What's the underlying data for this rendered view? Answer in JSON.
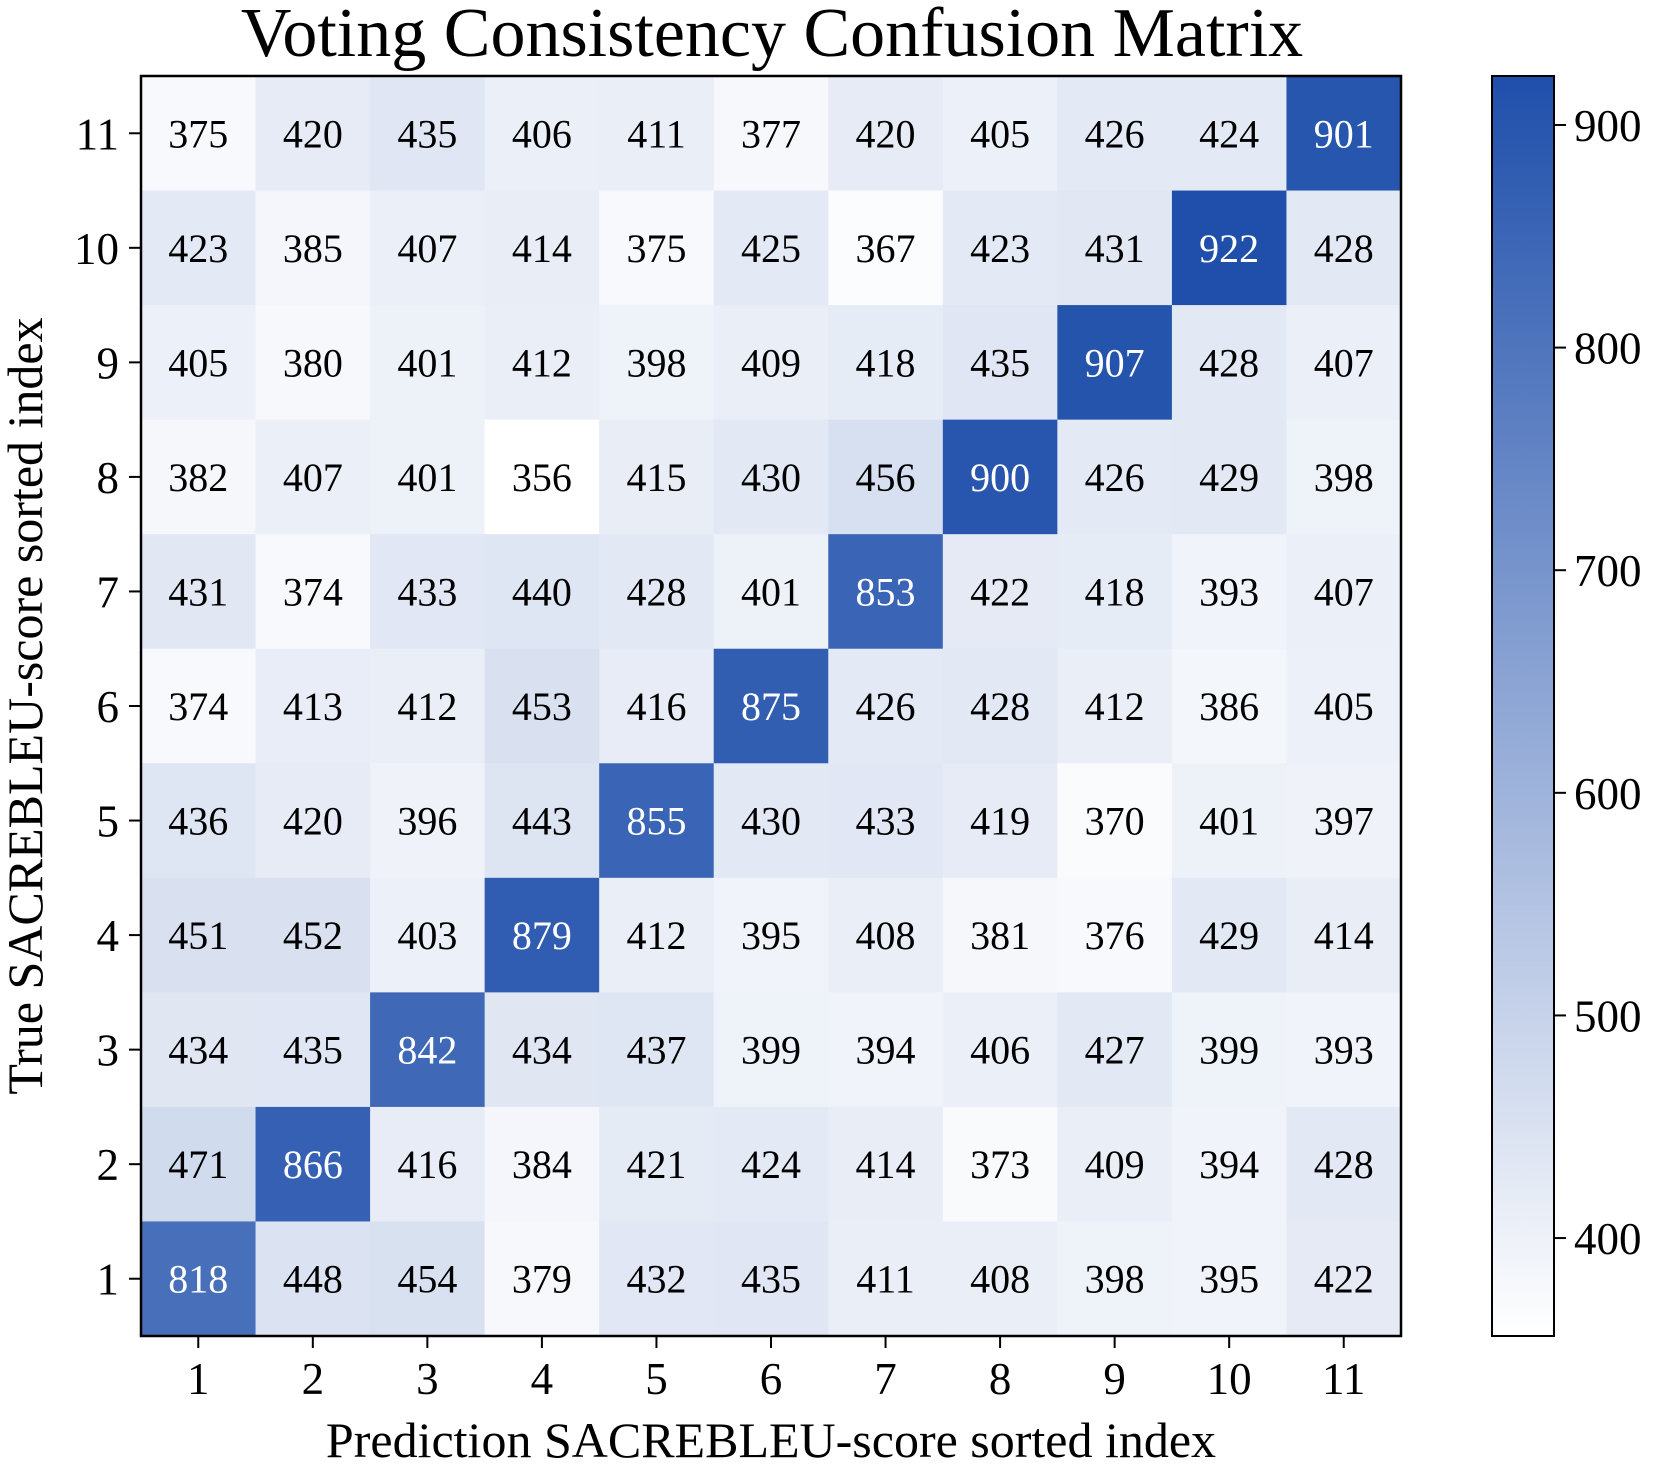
{
  "chart_data": {
    "type": "heatmap",
    "title": "Voting Consistency Confusion Matrix",
    "xlabel": "Prediction SACREBLEU-score sorted index",
    "ylabel": "True SACREBLEU-score sorted index",
    "x_categories": [
      "1",
      "2",
      "3",
      "4",
      "5",
      "6",
      "7",
      "8",
      "9",
      "10",
      "11"
    ],
    "y_categories": [
      "11",
      "10",
      "9",
      "8",
      "7",
      "6",
      "5",
      "4",
      "3",
      "2",
      "1"
    ],
    "matrix": [
      [
        375,
        420,
        435,
        406,
        411,
        377,
        420,
        405,
        426,
        424,
        901
      ],
      [
        423,
        385,
        407,
        414,
        375,
        425,
        367,
        423,
        431,
        922,
        428
      ],
      [
        405,
        380,
        401,
        412,
        398,
        409,
        418,
        435,
        907,
        428,
        407
      ],
      [
        382,
        407,
        401,
        356,
        415,
        430,
        456,
        900,
        426,
        429,
        398
      ],
      [
        431,
        374,
        433,
        440,
        428,
        401,
        853,
        422,
        418,
        393,
        407
      ],
      [
        374,
        413,
        412,
        453,
        416,
        875,
        426,
        428,
        412,
        386,
        405
      ],
      [
        436,
        420,
        396,
        443,
        855,
        430,
        433,
        419,
        370,
        401,
        397
      ],
      [
        451,
        452,
        403,
        879,
        412,
        395,
        408,
        381,
        376,
        429,
        414
      ],
      [
        434,
        435,
        842,
        434,
        437,
        399,
        394,
        406,
        427,
        399,
        393
      ],
      [
        471,
        866,
        416,
        384,
        421,
        424,
        414,
        373,
        409,
        394,
        428
      ],
      [
        818,
        448,
        454,
        379,
        432,
        435,
        411,
        408,
        398,
        395,
        422
      ]
    ],
    "colorbar": {
      "min": 356,
      "max": 922,
      "ticks": [
        400,
        500,
        600,
        700,
        800,
        900
      ],
      "tick_labels": [
        "400",
        "500",
        "600",
        "700",
        "800",
        "900"
      ]
    },
    "colormap": [
      "#ffffff",
      "#1f4fab"
    ],
    "grid": false
  }
}
